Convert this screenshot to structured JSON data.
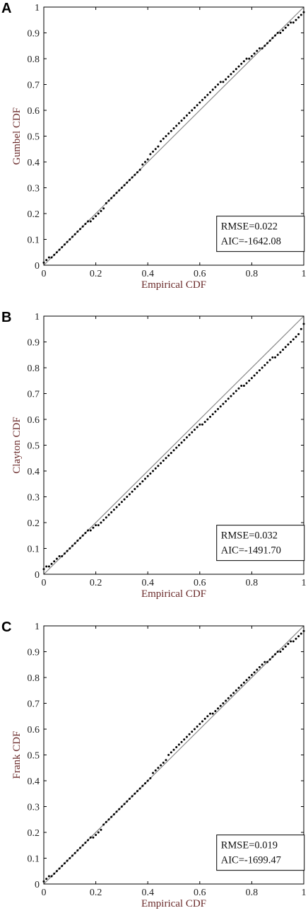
{
  "chart_data": [
    {
      "panel": "A",
      "type": "scatter",
      "xlabel": "Empirical CDF",
      "ylabel": "Gumbel CDF",
      "xlim": [
        0,
        1
      ],
      "ylim": [
        0,
        1
      ],
      "xticks": [
        "0",
        "0.2",
        "0.4",
        "0.6",
        "0.8",
        "1"
      ],
      "yticks": [
        "0",
        "0.1",
        "0.2",
        "0.3",
        "0.4",
        "0.5",
        "0.6",
        "0.7",
        "0.8",
        "0.9",
        "1"
      ],
      "reference_line": [
        [
          0,
          0
        ],
        [
          1,
          1
        ]
      ],
      "stats": [
        "RMSE=0.022",
        "AIC=-1642.08"
      ],
      "x": [
        0.0,
        0.01,
        0.02,
        0.03,
        0.04,
        0.05,
        0.06,
        0.07,
        0.08,
        0.09,
        0.1,
        0.11,
        0.12,
        0.13,
        0.14,
        0.15,
        0.16,
        0.17,
        0.18,
        0.19,
        0.2,
        0.21,
        0.22,
        0.23,
        0.24,
        0.25,
        0.26,
        0.27,
        0.28,
        0.29,
        0.3,
        0.31,
        0.32,
        0.33,
        0.34,
        0.35,
        0.36,
        0.37,
        0.38,
        0.39,
        0.4,
        0.41,
        0.42,
        0.43,
        0.44,
        0.45,
        0.46,
        0.47,
        0.48,
        0.49,
        0.5,
        0.51,
        0.52,
        0.53,
        0.54,
        0.55,
        0.56,
        0.57,
        0.58,
        0.59,
        0.6,
        0.61,
        0.62,
        0.63,
        0.64,
        0.65,
        0.66,
        0.67,
        0.68,
        0.69,
        0.7,
        0.71,
        0.72,
        0.73,
        0.74,
        0.75,
        0.76,
        0.77,
        0.78,
        0.79,
        0.8,
        0.81,
        0.82,
        0.83,
        0.84,
        0.85,
        0.86,
        0.87,
        0.88,
        0.89,
        0.9,
        0.91,
        0.92,
        0.93,
        0.94,
        0.95,
        0.96,
        0.97,
        0.98,
        0.99,
        1.0
      ],
      "y": [
        0.01,
        0.02,
        0.03,
        0.03,
        0.04,
        0.05,
        0.06,
        0.07,
        0.08,
        0.09,
        0.1,
        0.11,
        0.12,
        0.13,
        0.14,
        0.15,
        0.16,
        0.17,
        0.17,
        0.18,
        0.19,
        0.2,
        0.21,
        0.22,
        0.24,
        0.25,
        0.26,
        0.27,
        0.28,
        0.29,
        0.3,
        0.31,
        0.32,
        0.33,
        0.34,
        0.35,
        0.36,
        0.37,
        0.39,
        0.4,
        0.41,
        0.43,
        0.44,
        0.45,
        0.46,
        0.48,
        0.49,
        0.5,
        0.51,
        0.52,
        0.53,
        0.54,
        0.55,
        0.56,
        0.57,
        0.58,
        0.59,
        0.6,
        0.61,
        0.62,
        0.63,
        0.64,
        0.65,
        0.66,
        0.67,
        0.68,
        0.69,
        0.7,
        0.71,
        0.71,
        0.72,
        0.73,
        0.74,
        0.75,
        0.76,
        0.77,
        0.78,
        0.79,
        0.8,
        0.8,
        0.81,
        0.82,
        0.83,
        0.84,
        0.84,
        0.85,
        0.86,
        0.87,
        0.88,
        0.89,
        0.9,
        0.9,
        0.91,
        0.92,
        0.93,
        0.94,
        0.94,
        0.95,
        0.96,
        0.97,
        0.98
      ]
    },
    {
      "panel": "B",
      "type": "scatter",
      "xlabel": "Empirical CDF",
      "ylabel": "Clayton CDF",
      "xlim": [
        0,
        1
      ],
      "ylim": [
        0,
        1
      ],
      "xticks": [
        "0",
        "0.2",
        "0.4",
        "0.6",
        "0.8",
        "1"
      ],
      "yticks": [
        "0",
        "0.1",
        "0.2",
        "0.3",
        "0.4",
        "0.5",
        "0.6",
        "0.7",
        "0.8",
        "0.9",
        "1"
      ],
      "reference_line": [
        [
          0,
          0
        ],
        [
          1,
          1
        ]
      ],
      "stats": [
        "RMSE=0.032",
        "AIC=-1491.70"
      ],
      "x": [
        0.0,
        0.01,
        0.02,
        0.03,
        0.04,
        0.05,
        0.06,
        0.07,
        0.08,
        0.09,
        0.1,
        0.11,
        0.12,
        0.13,
        0.14,
        0.15,
        0.16,
        0.17,
        0.18,
        0.19,
        0.2,
        0.21,
        0.22,
        0.23,
        0.24,
        0.25,
        0.26,
        0.27,
        0.28,
        0.29,
        0.3,
        0.31,
        0.32,
        0.33,
        0.34,
        0.35,
        0.36,
        0.37,
        0.38,
        0.39,
        0.4,
        0.41,
        0.42,
        0.43,
        0.44,
        0.45,
        0.46,
        0.47,
        0.48,
        0.49,
        0.5,
        0.51,
        0.52,
        0.53,
        0.54,
        0.55,
        0.56,
        0.57,
        0.58,
        0.59,
        0.6,
        0.61,
        0.62,
        0.63,
        0.64,
        0.65,
        0.66,
        0.67,
        0.68,
        0.69,
        0.7,
        0.71,
        0.72,
        0.73,
        0.74,
        0.75,
        0.76,
        0.77,
        0.78,
        0.79,
        0.8,
        0.81,
        0.82,
        0.83,
        0.84,
        0.85,
        0.86,
        0.87,
        0.88,
        0.89,
        0.9,
        0.91,
        0.92,
        0.93,
        0.94,
        0.95,
        0.96,
        0.97,
        0.98,
        0.99,
        1.0
      ],
      "y": [
        0.02,
        0.03,
        0.03,
        0.04,
        0.05,
        0.06,
        0.07,
        0.07,
        0.08,
        0.09,
        0.1,
        0.11,
        0.12,
        0.13,
        0.14,
        0.15,
        0.16,
        0.17,
        0.17,
        0.18,
        0.19,
        0.19,
        0.2,
        0.21,
        0.22,
        0.23,
        0.24,
        0.25,
        0.26,
        0.27,
        0.28,
        0.29,
        0.3,
        0.31,
        0.32,
        0.33,
        0.34,
        0.35,
        0.36,
        0.37,
        0.38,
        0.39,
        0.4,
        0.41,
        0.42,
        0.43,
        0.44,
        0.45,
        0.46,
        0.47,
        0.48,
        0.49,
        0.5,
        0.51,
        0.52,
        0.53,
        0.54,
        0.55,
        0.56,
        0.57,
        0.58,
        0.58,
        0.59,
        0.6,
        0.61,
        0.62,
        0.63,
        0.64,
        0.65,
        0.66,
        0.67,
        0.68,
        0.69,
        0.7,
        0.71,
        0.72,
        0.73,
        0.73,
        0.74,
        0.75,
        0.76,
        0.77,
        0.78,
        0.79,
        0.8,
        0.81,
        0.82,
        0.83,
        0.84,
        0.84,
        0.85,
        0.86,
        0.87,
        0.88,
        0.89,
        0.9,
        0.91,
        0.92,
        0.93,
        0.95,
        0.97
      ]
    },
    {
      "panel": "C",
      "type": "scatter",
      "xlabel": "Empirical CDF",
      "ylabel": "Frank CDF",
      "xlim": [
        0,
        1
      ],
      "ylim": [
        0,
        1
      ],
      "xticks": [
        "0",
        "0.2",
        "0.4",
        "0.6",
        "0.8",
        "1"
      ],
      "yticks": [
        "0",
        "0.1",
        "0.2",
        "0.3",
        "0.4",
        "0.5",
        "0.6",
        "0.7",
        "0.8",
        "0.9",
        "1"
      ],
      "reference_line": [
        [
          0,
          0
        ],
        [
          1,
          1
        ]
      ],
      "stats": [
        "RMSE=0.019",
        "AIC=-1699.47"
      ],
      "x": [
        0.0,
        0.01,
        0.02,
        0.03,
        0.04,
        0.05,
        0.06,
        0.07,
        0.08,
        0.09,
        0.1,
        0.11,
        0.12,
        0.13,
        0.14,
        0.15,
        0.16,
        0.17,
        0.18,
        0.19,
        0.2,
        0.21,
        0.22,
        0.23,
        0.24,
        0.25,
        0.26,
        0.27,
        0.28,
        0.29,
        0.3,
        0.31,
        0.32,
        0.33,
        0.34,
        0.35,
        0.36,
        0.37,
        0.38,
        0.39,
        0.4,
        0.41,
        0.42,
        0.43,
        0.44,
        0.45,
        0.46,
        0.47,
        0.48,
        0.49,
        0.5,
        0.51,
        0.52,
        0.53,
        0.54,
        0.55,
        0.56,
        0.57,
        0.58,
        0.59,
        0.6,
        0.61,
        0.62,
        0.63,
        0.64,
        0.65,
        0.66,
        0.67,
        0.68,
        0.69,
        0.7,
        0.71,
        0.72,
        0.73,
        0.74,
        0.75,
        0.76,
        0.77,
        0.78,
        0.79,
        0.8,
        0.81,
        0.82,
        0.83,
        0.84,
        0.85,
        0.86,
        0.87,
        0.88,
        0.89,
        0.9,
        0.91,
        0.92,
        0.93,
        0.94,
        0.95,
        0.96,
        0.97,
        0.98,
        0.99,
        1.0
      ],
      "y": [
        0.01,
        0.02,
        0.03,
        0.03,
        0.04,
        0.05,
        0.06,
        0.07,
        0.08,
        0.09,
        0.1,
        0.11,
        0.12,
        0.13,
        0.14,
        0.15,
        0.16,
        0.17,
        0.18,
        0.18,
        0.19,
        0.2,
        0.21,
        0.23,
        0.24,
        0.25,
        0.26,
        0.27,
        0.28,
        0.29,
        0.3,
        0.31,
        0.32,
        0.33,
        0.34,
        0.35,
        0.36,
        0.37,
        0.38,
        0.39,
        0.4,
        0.41,
        0.43,
        0.44,
        0.45,
        0.46,
        0.47,
        0.48,
        0.5,
        0.51,
        0.52,
        0.53,
        0.54,
        0.55,
        0.56,
        0.57,
        0.58,
        0.59,
        0.6,
        0.61,
        0.62,
        0.63,
        0.64,
        0.65,
        0.66,
        0.66,
        0.67,
        0.68,
        0.69,
        0.7,
        0.71,
        0.72,
        0.73,
        0.74,
        0.75,
        0.76,
        0.77,
        0.78,
        0.79,
        0.8,
        0.81,
        0.82,
        0.83,
        0.84,
        0.85,
        0.86,
        0.86,
        0.87,
        0.88,
        0.89,
        0.9,
        0.9,
        0.91,
        0.92,
        0.93,
        0.94,
        0.94,
        0.95,
        0.96,
        0.97,
        0.98
      ]
    }
  ]
}
